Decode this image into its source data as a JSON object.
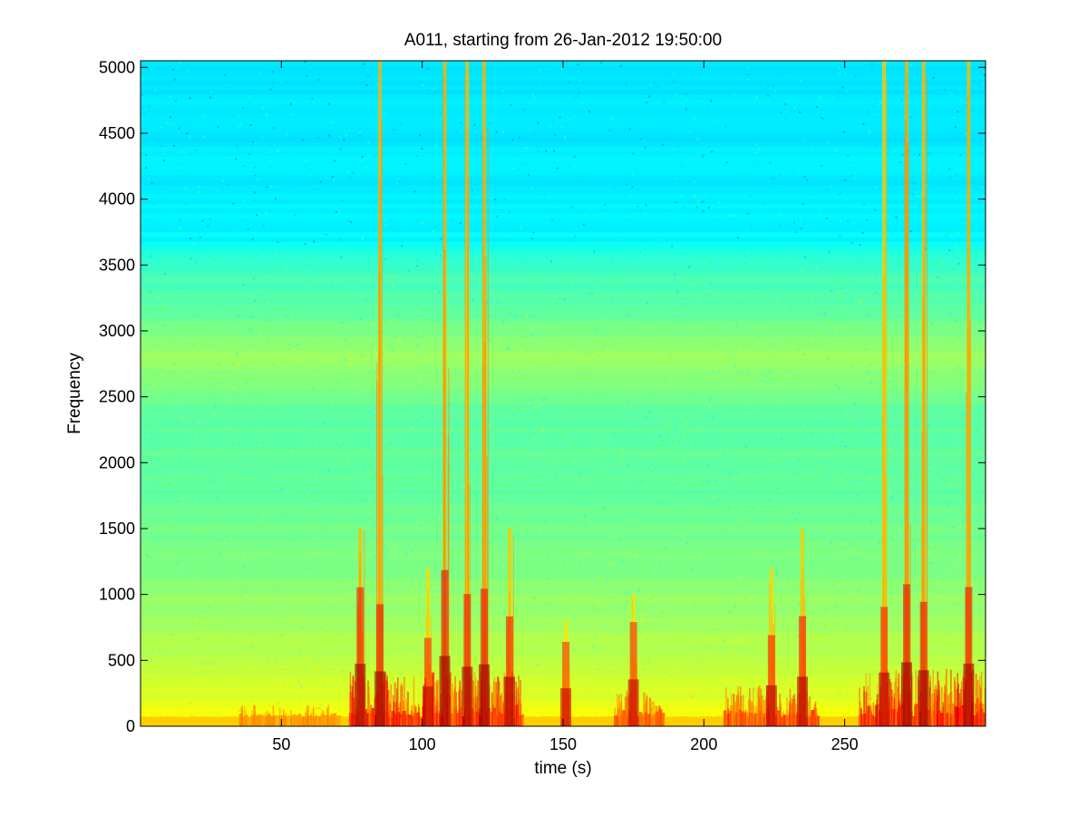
{
  "chart_data": {
    "type": "heatmap",
    "title": "A011, starting from 26-Jan-2012 19:50:00",
    "xlabel": "time (s)",
    "ylabel": "Frequency",
    "xlim": [
      0,
      300
    ],
    "ylim": [
      0,
      5050
    ],
    "x_ticks": [
      50,
      100,
      150,
      200,
      250
    ],
    "x_tick_labels": [
      "50",
      "100",
      "150",
      "200",
      "250"
    ],
    "y_ticks": [
      0,
      500,
      1000,
      1500,
      2000,
      2500,
      3000,
      3500,
      4000,
      4500,
      5000
    ],
    "y_tick_labels": [
      "0",
      "500",
      "1000",
      "1500",
      "2000",
      "2500",
      "3000",
      "3500",
      "4000",
      "4500",
      "5000"
    ],
    "colormap": "jet",
    "grid": false,
    "intensity_profile": {
      "frequency": [
        0,
        100,
        300,
        500,
        800,
        1200,
        1800,
        2400,
        2800,
        3200,
        3500,
        3700,
        4000,
        5050
      ],
      "level": [
        0.64,
        0.61,
        0.58,
        0.56,
        0.53,
        0.5,
        0.47,
        0.47,
        0.53,
        0.46,
        0.43,
        0.37,
        0.36,
        0.35
      ]
    },
    "broadband_events": [
      {
        "time": 78,
        "strength": 0.9,
        "extent_hz": 1500
      },
      {
        "time": 85,
        "strength": 1.0,
        "extent_hz": 5050
      },
      {
        "time": 102,
        "strength": 0.6,
        "extent_hz": 1200
      },
      {
        "time": 108,
        "strength": 1.0,
        "extent_hz": 5050
      },
      {
        "time": 116,
        "strength": 0.9,
        "extent_hz": 5050
      },
      {
        "time": 122,
        "strength": 1.0,
        "extent_hz": 5050
      },
      {
        "time": 131,
        "strength": 0.8,
        "extent_hz": 1500
      },
      {
        "time": 151,
        "strength": 0.5,
        "extent_hz": 800
      },
      {
        "time": 175,
        "strength": 0.55,
        "extent_hz": 1000
      },
      {
        "time": 224,
        "strength": 0.65,
        "extent_hz": 1200
      },
      {
        "time": 235,
        "strength": 0.75,
        "extent_hz": 1500
      },
      {
        "time": 264,
        "strength": 0.7,
        "extent_hz": 5050
      },
      {
        "time": 272,
        "strength": 1.0,
        "extent_hz": 5050
      },
      {
        "time": 278,
        "strength": 0.95,
        "extent_hz": 5050
      },
      {
        "time": 294,
        "strength": 0.9,
        "extent_hz": 5050
      }
    ],
    "low_frequency_active_segments": [
      {
        "start": 35,
        "end": 70,
        "level": 0.25
      },
      {
        "start": 74,
        "end": 135,
        "level": 0.85
      },
      {
        "start": 168,
        "end": 185,
        "level": 0.5
      },
      {
        "start": 207,
        "end": 240,
        "level": 0.6
      },
      {
        "start": 255,
        "end": 300,
        "level": 0.9
      }
    ]
  }
}
